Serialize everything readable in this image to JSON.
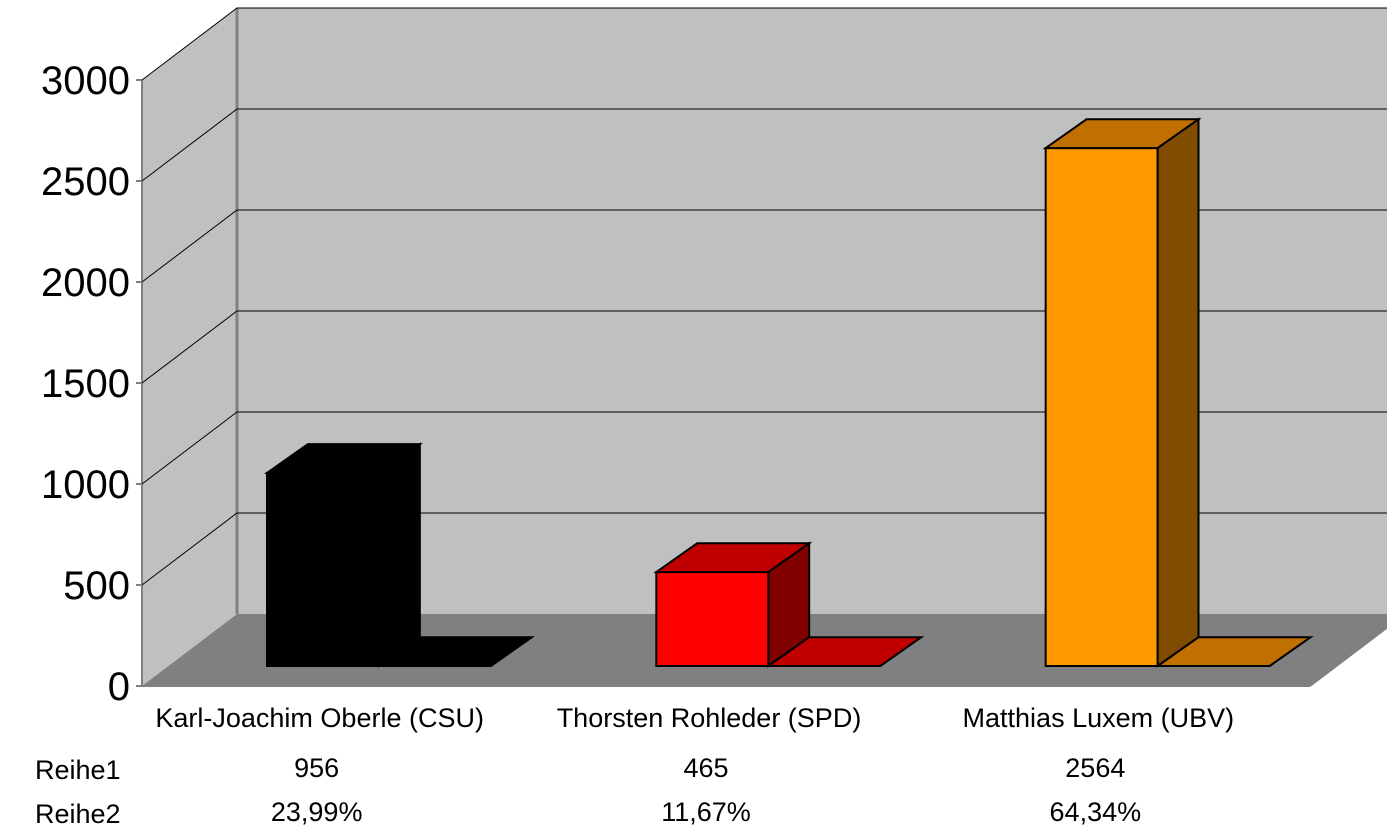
{
  "chart_data": {
    "type": "bar",
    "title": "",
    "xlabel": "",
    "ylabel": "",
    "categories": [
      "Karl-Joachim Oberle (CSU)",
      "Thorsten Rohleder (SPD)",
      "Matthias Luxem (UBV)"
    ],
    "series": [
      {
        "name": "Reihe1",
        "values": [
          956,
          465,
          2564
        ]
      },
      {
        "name": "Reihe2",
        "values": [
          23.99,
          11.67,
          64.34
        ]
      }
    ],
    "data_table": {
      "row_labels": [
        "Reihe1",
        "Reihe2"
      ],
      "rows": [
        [
          "956",
          "465",
          "2564"
        ],
        [
          "23,99%",
          "11,67%",
          "64,34%"
        ]
      ]
    },
    "ylim": [
      0,
      3000
    ],
    "yticks": [
      "0",
      "500",
      "1000",
      "1500",
      "2000",
      "2500",
      "3000"
    ],
    "grid": true,
    "three_d": true,
    "colors": {
      "bar_fronts": [
        "#000000",
        "#ff0000",
        "#ff9900"
      ],
      "bar_tops": [
        "#000000",
        "#c00000",
        "#c07000"
      ],
      "bar_sides": [
        "#000000",
        "#800000",
        "#804c00"
      ],
      "back_wall": "#c0c0c0",
      "side_wall": "#c0c0c0",
      "floor": "#808080",
      "grid": "#000000",
      "axis": "#808080"
    }
  }
}
